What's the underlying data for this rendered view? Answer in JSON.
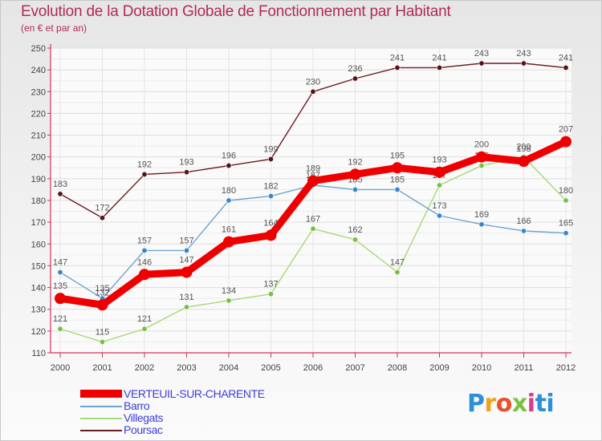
{
  "header": {
    "title": "Evolution de la Dotation Globale de Fonctionnement par Habitant",
    "subtitle": "(en € et par an)"
  },
  "logo": {
    "letters": [
      "P",
      "r",
      "o",
      "x",
      "i",
      "ti"
    ]
  },
  "colors": {
    "title": "#b22a56",
    "axis": "#d2335c",
    "text": "#444444",
    "grid": "#dddddd"
  },
  "chart_data": {
    "type": "line",
    "title": "Evolution de la Dotation Globale de Fonctionnement par Habitant",
    "subtitle": "(en € et par an)",
    "xlabel": "",
    "ylabel": "",
    "x": [
      "2000",
      "2001",
      "2002",
      "2003",
      "2004",
      "2005",
      "2006",
      "2007",
      "2008",
      "2009",
      "2010",
      "2011",
      "2012"
    ],
    "ylim": [
      110,
      250
    ],
    "yticks": [
      110,
      120,
      130,
      140,
      150,
      160,
      170,
      180,
      190,
      200,
      210,
      220,
      230,
      240,
      250
    ],
    "grid": true,
    "legend_position": "bottom-left",
    "series": [
      {
        "name": "Poursac",
        "color": "#6b1a22",
        "marker": "#5a1018",
        "values": [
          183,
          172,
          192,
          193,
          196,
          199,
          230,
          236,
          241,
          241,
          243,
          243,
          241
        ]
      },
      {
        "name": "Villegats",
        "color": "#a8d878",
        "marker": "#76c043",
        "values": [
          121,
          115,
          121,
          131,
          134,
          137,
          167,
          162,
          147,
          187,
          196,
          200,
          180
        ]
      },
      {
        "name": "Barro",
        "color": "#6fa4cc",
        "marker": "#3a86c8",
        "values": [
          147,
          135,
          157,
          157,
          180,
          182,
          187,
          185,
          185,
          173,
          169,
          166,
          165
        ]
      },
      {
        "name": "VERTEUIL-SUR-CHARENTE",
        "color": "#ee0000",
        "marker": "#ee0000",
        "values": [
          135,
          132,
          146,
          147,
          161,
          164,
          189,
          192,
          195,
          193,
          200,
          198,
          207
        ]
      }
    ],
    "legend": [
      {
        "name": "VERTEUIL-SUR-CHARENTE",
        "color": "#ee0000",
        "label_color": "#3d3dd8",
        "thick": true
      },
      {
        "name": "Barro",
        "color": "#6fa4cc",
        "label_color": "#3d3dd8",
        "thick": false
      },
      {
        "name": "Villegats",
        "color": "#a8d878",
        "label_color": "#3d3dd8",
        "thick": false
      },
      {
        "name": "Poursac",
        "color": "#6b1a22",
        "label_color": "#3d3dd8",
        "thick": false
      }
    ]
  }
}
